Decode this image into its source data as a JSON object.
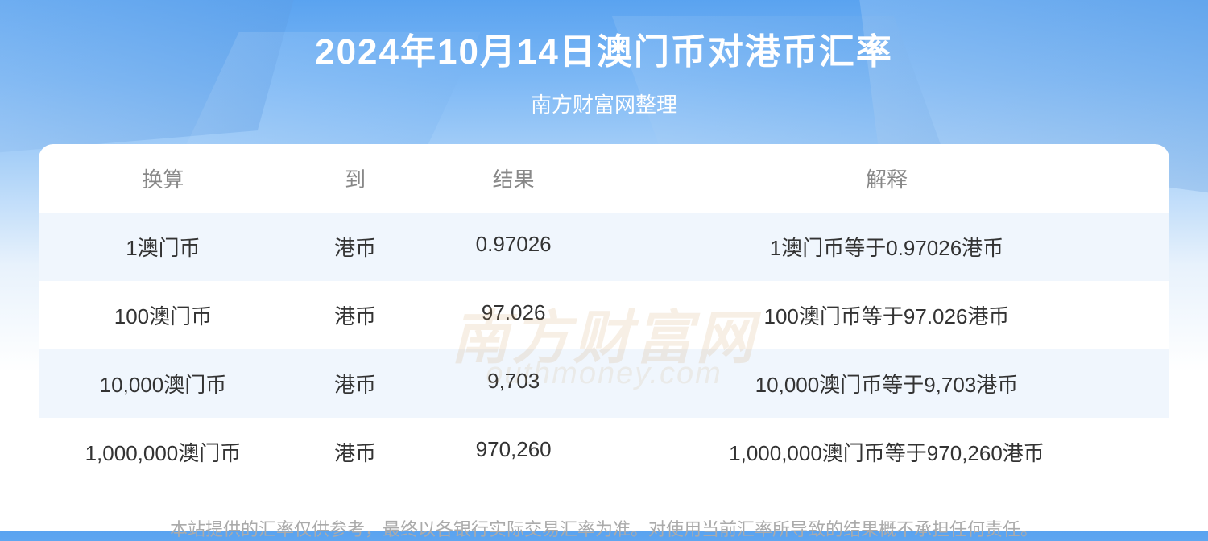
{
  "header": {
    "title": "2024年10月14日澳门币对港币汇率",
    "subtitle": "南方财富网整理",
    "title_color": "#ffffff",
    "subtitle_color": "#ffffff",
    "title_fontsize": 44,
    "subtitle_fontsize": 26
  },
  "table": {
    "columns": [
      "换算",
      "到",
      "结果",
      "解释"
    ],
    "column_widths_pct": [
      22,
      12,
      16,
      50
    ],
    "header_color": "#888888",
    "row_text_color": "#333333",
    "row_alt_bg": "#f0f6fd",
    "fontsize": 26,
    "rows": [
      {
        "convert": "1澳门币",
        "to": "港币",
        "result": "0.97026",
        "explain": "1澳门币等于0.97026港币",
        "alt": true
      },
      {
        "convert": "100澳门币",
        "to": "港币",
        "result": "97.026",
        "explain": "100澳门币等于97.026港币",
        "alt": false
      },
      {
        "convert": "10,000澳门币",
        "to": "港币",
        "result": "9,703",
        "explain": "10,000澳门币等于9,703港币",
        "alt": true
      },
      {
        "convert": "1,000,000澳门币",
        "to": "港币",
        "result": "970,260",
        "explain": "1,000,000澳门币等于970,260港币",
        "alt": false
      }
    ]
  },
  "watermark": {
    "main": "南方财富网",
    "sub": "outhmoney.com",
    "color": "rgba(200,150,80,0.15)"
  },
  "disclaimer": "本站提供的汇率仅供参考，最终以各银行实际交易汇率为准。对使用当前汇率所导致的结果概不承担任何责任。",
  "background": {
    "gradient_colors": [
      "#5aa3f0",
      "#7db8f5",
      "#a8d0f8",
      "#e8f2fc",
      "#ffffff"
    ],
    "table_bg": "#ffffff",
    "table_radius": 18
  }
}
